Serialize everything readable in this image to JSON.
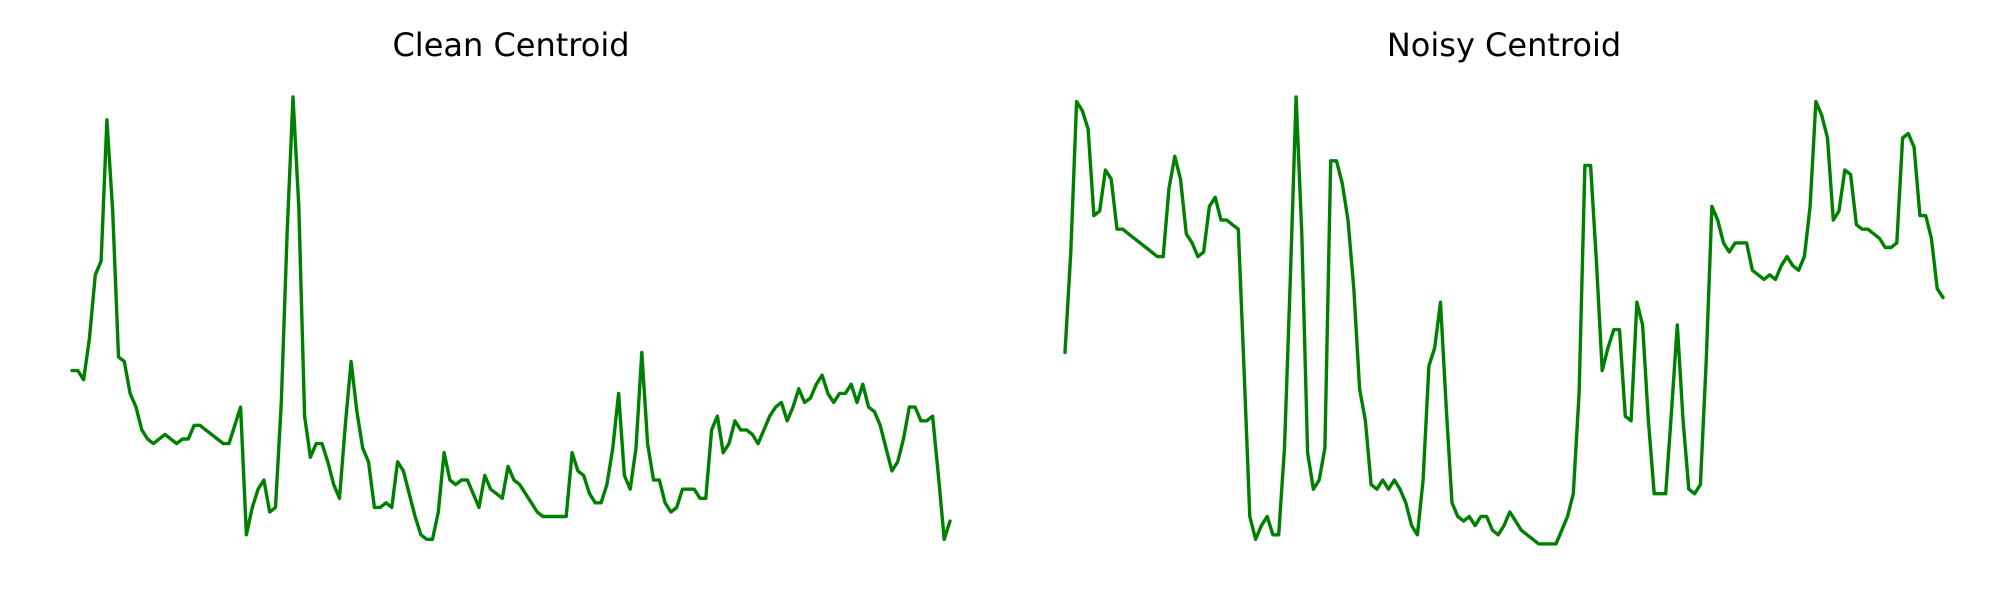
{
  "colors": {
    "line": "#008000",
    "background": "#ffffff"
  },
  "chart_data": [
    {
      "type": "line",
      "title": "Clean Centroid",
      "axes_visible": false,
      "grid": false,
      "ylim": [
        0,
        1
      ],
      "series": [
        {
          "color": "#008000",
          "values": [
            0.4,
            0.4,
            0.38,
            0.47,
            0.61,
            0.64,
            0.95,
            0.75,
            0.43,
            0.42,
            0.35,
            0.32,
            0.27,
            0.25,
            0.24,
            0.25,
            0.26,
            0.25,
            0.24,
            0.25,
            0.25,
            0.28,
            0.28,
            0.27,
            0.26,
            0.25,
            0.24,
            0.24,
            0.28,
            0.32,
            0.04,
            0.1,
            0.14,
            0.16,
            0.09,
            0.1,
            0.33,
            0.7,
            1.0,
            0.76,
            0.3,
            0.21,
            0.24,
            0.24,
            0.2,
            0.15,
            0.12,
            0.28,
            0.42,
            0.31,
            0.23,
            0.2,
            0.1,
            0.1,
            0.11,
            0.1,
            0.2,
            0.18,
            0.13,
            0.08,
            0.04,
            0.03,
            0.03,
            0.09,
            0.22,
            0.16,
            0.15,
            0.16,
            0.16,
            0.13,
            0.1,
            0.17,
            0.14,
            0.13,
            0.12,
            0.19,
            0.16,
            0.15,
            0.13,
            0.11,
            0.09,
            0.08,
            0.08,
            0.08,
            0.08,
            0.08,
            0.22,
            0.18,
            0.17,
            0.13,
            0.11,
            0.11,
            0.15,
            0.23,
            0.35,
            0.17,
            0.14,
            0.23,
            0.44,
            0.24,
            0.16,
            0.16,
            0.11,
            0.09,
            0.1,
            0.14,
            0.14,
            0.14,
            0.12,
            0.12,
            0.27,
            0.3,
            0.22,
            0.24,
            0.29,
            0.27,
            0.27,
            0.26,
            0.24,
            0.27,
            0.3,
            0.32,
            0.33,
            0.29,
            0.32,
            0.36,
            0.33,
            0.34,
            0.37,
            0.39,
            0.35,
            0.33,
            0.35,
            0.35,
            0.37,
            0.33,
            0.37,
            0.32,
            0.31,
            0.28,
            0.23,
            0.18,
            0.2,
            0.25,
            0.32,
            0.32,
            0.29,
            0.29,
            0.3,
            0.17,
            0.03,
            0.07
          ]
        }
      ]
    },
    {
      "type": "line",
      "title": "Noisy Centroid",
      "axes_visible": false,
      "grid": false,
      "ylim": [
        0,
        1
      ],
      "series": [
        {
          "color": "#008000",
          "values": [
            0.44,
            0.66,
            0.99,
            0.97,
            0.93,
            0.74,
            0.75,
            0.84,
            0.82,
            0.71,
            0.71,
            0.7,
            0.69,
            0.68,
            0.67,
            0.66,
            0.65,
            0.65,
            0.8,
            0.87,
            0.82,
            0.7,
            0.68,
            0.65,
            0.66,
            0.76,
            0.78,
            0.73,
            0.73,
            0.72,
            0.71,
            0.4,
            0.08,
            0.03,
            0.06,
            0.08,
            0.04,
            0.04,
            0.23,
            0.6,
            1.0,
            0.7,
            0.22,
            0.14,
            0.16,
            0.23,
            0.86,
            0.86,
            0.81,
            0.73,
            0.58,
            0.36,
            0.29,
            0.15,
            0.14,
            0.16,
            0.14,
            0.16,
            0.14,
            0.11,
            0.06,
            0.04,
            0.16,
            0.41,
            0.45,
            0.55,
            0.32,
            0.11,
            0.08,
            0.07,
            0.08,
            0.06,
            0.08,
            0.08,
            0.05,
            0.04,
            0.06,
            0.09,
            0.07,
            0.05,
            0.04,
            0.03,
            0.02,
            0.02,
            0.02,
            0.02,
            0.05,
            0.08,
            0.13,
            0.35,
            0.85,
            0.85,
            0.64,
            0.4,
            0.45,
            0.49,
            0.49,
            0.3,
            0.29,
            0.55,
            0.5,
            0.29,
            0.13,
            0.13,
            0.13,
            0.31,
            0.5,
            0.29,
            0.14,
            0.13,
            0.15,
            0.42,
            0.76,
            0.73,
            0.68,
            0.66,
            0.68,
            0.68,
            0.68,
            0.62,
            0.61,
            0.6,
            0.61,
            0.6,
            0.63,
            0.65,
            0.63,
            0.62,
            0.65,
            0.76,
            0.99,
            0.96,
            0.91,
            0.73,
            0.75,
            0.84,
            0.83,
            0.72,
            0.71,
            0.71,
            0.7,
            0.69,
            0.67,
            0.67,
            0.68,
            0.91,
            0.92,
            0.89,
            0.74,
            0.74,
            0.69,
            0.58,
            0.56
          ]
        }
      ]
    }
  ]
}
